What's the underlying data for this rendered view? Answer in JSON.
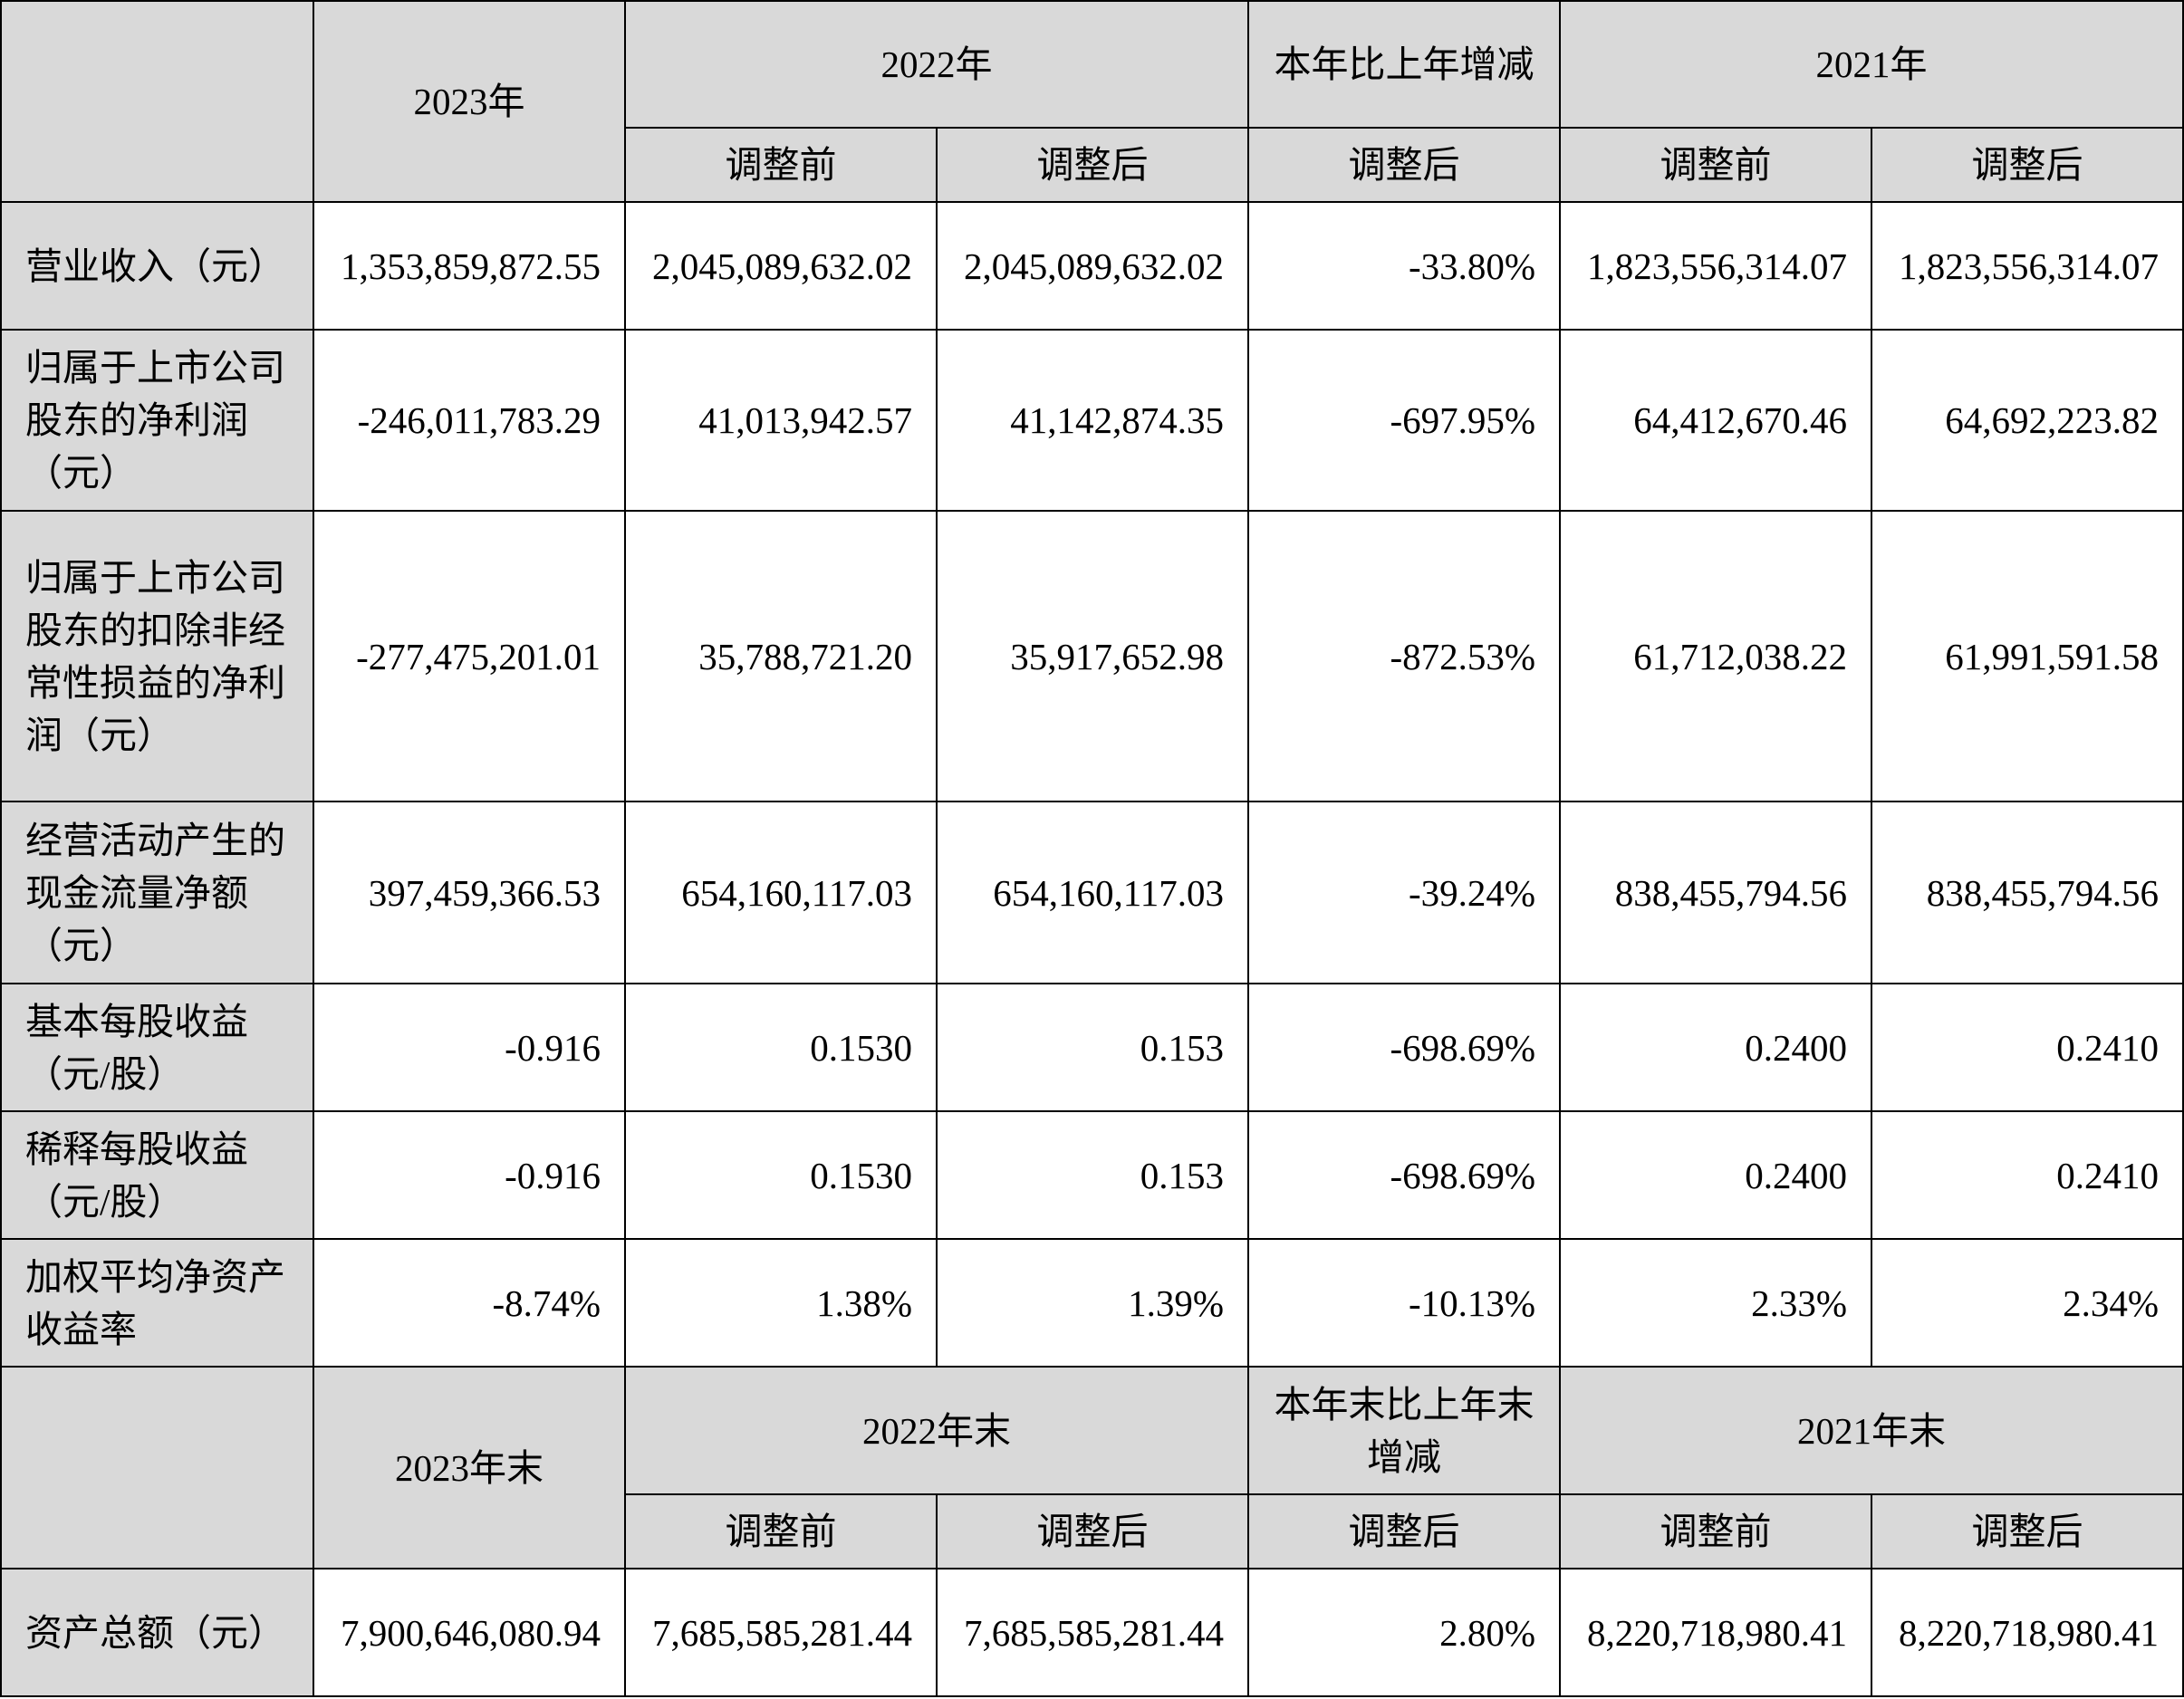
{
  "income_header": {
    "year_2023": "2023年",
    "year_2022": "2022年",
    "change": "本年比上年增减",
    "year_2021": "2021年",
    "before_adj": "调整前",
    "after_adj": "调整后"
  },
  "income_rows": [
    {
      "label": "营业收入（元）",
      "values": [
        "1,353,859,872.55",
        "2,045,089,632.02",
        "2,045,089,632.02",
        "-33.80%",
        "1,823,556,314.07",
        "1,823,556,314.07"
      ]
    },
    {
      "label": "归属于上市公司股东的净利润（元）",
      "values": [
        "-246,011,783.29",
        "41,013,942.57",
        "41,142,874.35",
        "-697.95%",
        "64,412,670.46",
        "64,692,223.82"
      ]
    },
    {
      "label": "归属于上市公司股东的扣除非经常性损益的净利润（元）",
      "values": [
        "-277,475,201.01",
        "35,788,721.20",
        "35,917,652.98",
        "-872.53%",
        "61,712,038.22",
        "61,991,591.58"
      ]
    },
    {
      "label": "经营活动产生的现金流量净额（元）",
      "values": [
        "397,459,366.53",
        "654,160,117.03",
        "654,160,117.03",
        "-39.24%",
        "838,455,794.56",
        "838,455,794.56"
      ]
    },
    {
      "label": "基本每股收益（元/股）",
      "values": [
        "-0.916",
        "0.1530",
        "0.153",
        "-698.69%",
        "0.2400",
        "0.2410"
      ]
    },
    {
      "label": "稀释每股收益（元/股）",
      "values": [
        "-0.916",
        "0.1530",
        "0.153",
        "-698.69%",
        "0.2400",
        "0.2410"
      ]
    },
    {
      "label": "加权平均净资产收益率",
      "values": [
        "-8.74%",
        "1.38%",
        "1.39%",
        "-10.13%",
        "2.33%",
        "2.34%"
      ]
    }
  ],
  "balance_header": {
    "year_2023": "2023年末",
    "year_2022": "2022年末",
    "change": "本年末比上年末增减",
    "year_2021": "2021年末",
    "before_adj": "调整前",
    "after_adj": "调整后"
  },
  "balance_rows": [
    {
      "label": "资产总额（元）",
      "values": [
        "7,900,646,080.94",
        "7,685,585,281.44",
        "7,685,585,281.44",
        "2.80%",
        "8,220,718,980.41",
        "8,220,718,980.41"
      ]
    }
  ]
}
